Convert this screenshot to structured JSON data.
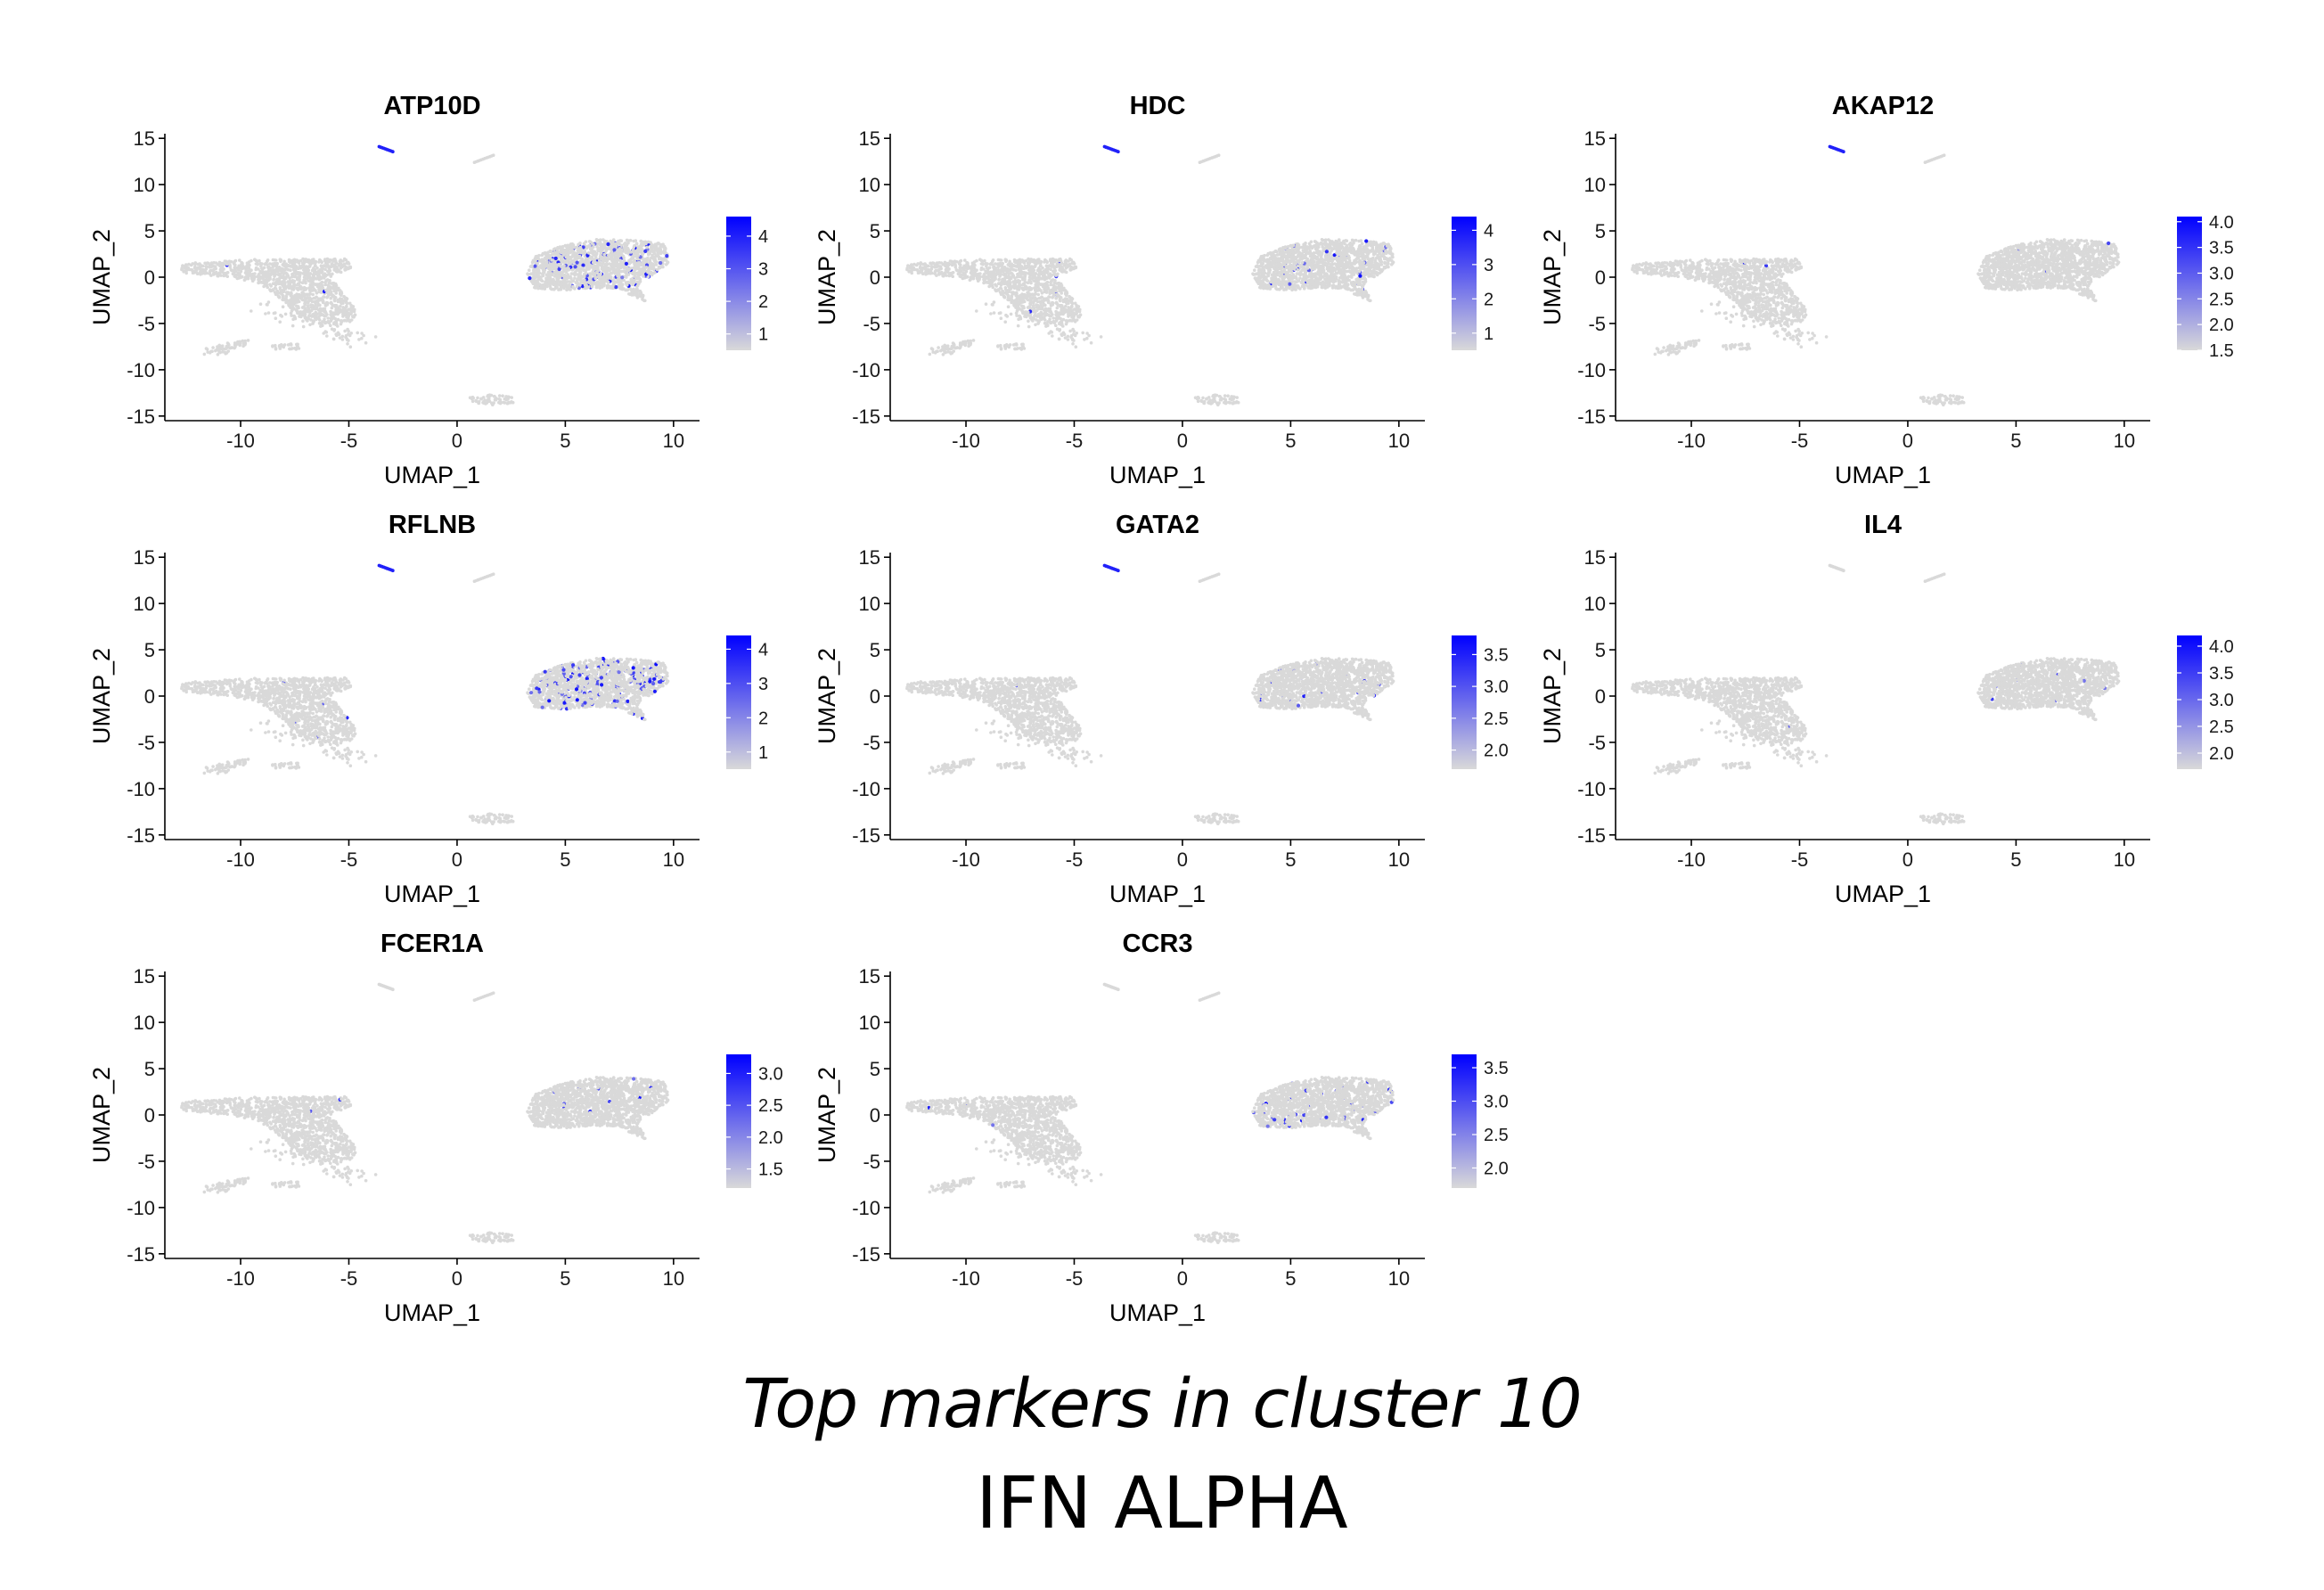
{
  "caption": {
    "line1": "Top markers in cluster 10",
    "line2": "IFN ALPHA"
  },
  "colors": {
    "point_low": "#d9d9d9",
    "point_high": "#0000ff",
    "axis": "#000000"
  },
  "chart_data": [
    {
      "type": "scatter",
      "title": "ATP10D",
      "xlabel": "UMAP_1",
      "ylabel": "UMAP_2",
      "xlim": [
        -13.5,
        11.2
      ],
      "ylim": [
        -15.5,
        15.5
      ],
      "xticks": [
        -10,
        -5,
        0,
        5,
        10
      ],
      "yticks": [
        -15,
        -10,
        -5,
        0,
        5,
        10,
        15
      ],
      "legend": {
        "position": "right",
        "min": 0.5,
        "max": 4.6,
        "ticks": [
          1,
          2,
          3,
          4
        ]
      },
      "expressing_cells": {
        "right_cluster_fraction": 0.05,
        "top_cluster": true
      }
    },
    {
      "type": "scatter",
      "title": "HDC",
      "xlabel": "UMAP_1",
      "ylabel": "UMAP_2",
      "xlim": [
        -13.5,
        11.2
      ],
      "ylim": [
        -15.5,
        15.5
      ],
      "xticks": [
        -10,
        -5,
        0,
        5,
        10
      ],
      "yticks": [
        -15,
        -10,
        -5,
        0,
        5,
        10,
        15
      ],
      "legend": {
        "position": "right",
        "min": 0.5,
        "max": 4.4,
        "ticks": [
          1,
          2,
          3,
          4
        ]
      },
      "expressing_cells": {
        "right_cluster_fraction": 0.015,
        "top_cluster": true
      }
    },
    {
      "type": "scatter",
      "title": "AKAP12",
      "xlabel": "UMAP_1",
      "ylabel": "UMAP_2",
      "xlim": [
        -13.5,
        11.2
      ],
      "ylim": [
        -15.5,
        15.5
      ],
      "xticks": [
        -10,
        -5,
        0,
        5,
        10
      ],
      "yticks": [
        -15,
        -10,
        -5,
        0,
        5,
        10,
        15
      ],
      "legend": {
        "position": "right",
        "min": 1.5,
        "max": 4.1,
        "ticks": [
          "1.5",
          "2.0",
          "2.5",
          "3.0",
          "3.5",
          "4.0"
        ]
      },
      "expressing_cells": {
        "right_cluster_fraction": 0.003,
        "top_cluster": true
      }
    },
    {
      "type": "scatter",
      "title": "RFLNB",
      "xlabel": "UMAP_1",
      "ylabel": "UMAP_2",
      "xlim": [
        -13.5,
        11.2
      ],
      "ylim": [
        -15.5,
        15.5
      ],
      "xticks": [
        -10,
        -5,
        0,
        5,
        10
      ],
      "yticks": [
        -15,
        -10,
        -5,
        0,
        5,
        10,
        15
      ],
      "legend": {
        "position": "right",
        "min": 0.5,
        "max": 4.4,
        "ticks": [
          1,
          2,
          3,
          4
        ]
      },
      "expressing_cells": {
        "right_cluster_fraction": 0.09,
        "top_cluster": true
      }
    },
    {
      "type": "scatter",
      "title": "GATA2",
      "xlabel": "UMAP_1",
      "ylabel": "UMAP_2",
      "xlim": [
        -13.5,
        11.2
      ],
      "ylim": [
        -15.5,
        15.5
      ],
      "xticks": [
        -10,
        -5,
        0,
        5,
        10
      ],
      "yticks": [
        -15,
        -10,
        -5,
        0,
        5,
        10,
        15
      ],
      "legend": {
        "position": "right",
        "min": 1.7,
        "max": 3.8,
        "ticks": [
          "2.0",
          "2.5",
          "3.0",
          "3.5"
        ]
      },
      "expressing_cells": {
        "right_cluster_fraction": 0.006,
        "top_cluster": true
      }
    },
    {
      "type": "scatter",
      "title": "IL4",
      "xlabel": "UMAP_1",
      "ylabel": "UMAP_2",
      "xlim": [
        -13.5,
        11.2
      ],
      "ylim": [
        -15.5,
        15.5
      ],
      "xticks": [
        -10,
        -5,
        0,
        5,
        10
      ],
      "yticks": [
        -15,
        -10,
        -5,
        0,
        5,
        10,
        15
      ],
      "legend": {
        "position": "right",
        "min": 1.7,
        "max": 4.2,
        "ticks": [
          "2.0",
          "2.5",
          "3.0",
          "3.5",
          "4.0"
        ]
      },
      "expressing_cells": {
        "right_cluster_fraction": 0.006,
        "top_cluster": false
      }
    },
    {
      "type": "scatter",
      "title": "FCER1A",
      "xlabel": "UMAP_1",
      "ylabel": "UMAP_2",
      "xlim": [
        -13.5,
        11.2
      ],
      "ylim": [
        -15.5,
        15.5
      ],
      "xticks": [
        -10,
        -5,
        0,
        5,
        10
      ],
      "yticks": [
        -15,
        -10,
        -5,
        0,
        5,
        10,
        15
      ],
      "legend": {
        "position": "right",
        "min": 1.2,
        "max": 3.3,
        "ticks": [
          "1.5",
          "2.0",
          "2.5",
          "3.0"
        ]
      },
      "expressing_cells": {
        "right_cluster_fraction": 0.006,
        "top_cluster": false
      }
    },
    {
      "type": "scatter",
      "title": "CCR3",
      "xlabel": "UMAP_1",
      "ylabel": "UMAP_2",
      "xlim": [
        -13.5,
        11.2
      ],
      "ylim": [
        -15.5,
        15.5
      ],
      "xticks": [
        -10,
        -5,
        0,
        5,
        10
      ],
      "yticks": [
        -15,
        -10,
        -5,
        0,
        5,
        10,
        15
      ],
      "legend": {
        "position": "right",
        "min": 1.7,
        "max": 3.7,
        "ticks": [
          "2.0",
          "2.5",
          "3.0",
          "3.5"
        ]
      },
      "expressing_cells": {
        "right_cluster_fraction": 0.02,
        "top_cluster": false
      }
    }
  ]
}
